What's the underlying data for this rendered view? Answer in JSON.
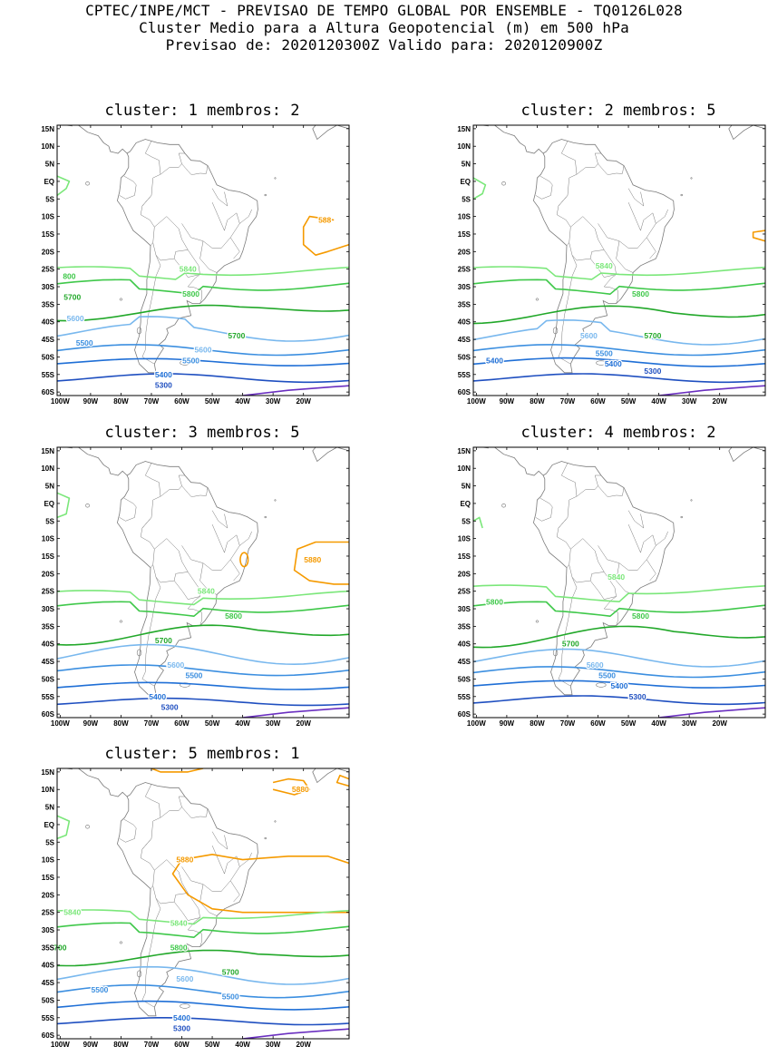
{
  "header": {
    "line1": "CPTEC/INPE/MCT - PREVISAO DE TEMPO GLOBAL POR ENSEMBLE - TQ0126L028",
    "line2": "Cluster Medio para a Altura Geopotencial (m) em 500 hPa",
    "line3": "Previsao de: 2020120300Z   Valido para: 2020120900Z"
  },
  "axes": {
    "lat_labels": [
      "15N",
      "10N",
      "5N",
      "EQ",
      "5S",
      "10S",
      "15S",
      "20S",
      "25S",
      "30S",
      "35S",
      "40S",
      "45S",
      "50S",
      "55S",
      "60S"
    ],
    "lon_labels": [
      "100W",
      "90W",
      "80W",
      "70W",
      "60W",
      "50W",
      "40W",
      "30W",
      "20W"
    ]
  },
  "colors": {
    "5300": "#1f4fc0",
    "5400": "#1f6fd6",
    "5500": "#3c8fe0",
    "5600": "#79b8ee",
    "5700": "#22a82a",
    "5800": "#3fc84a",
    "5840": "#7be77a",
    "5880": "#f59a00",
    "low": "#6a2fc0",
    "coast": "#7a7a7a"
  },
  "panels": [
    {
      "title": "cluster: 1   membros: 2",
      "labels": [
        {
          "text": "588",
          "lon": -13,
          "lat": -11,
          "c": "5880"
        },
        {
          "text": "5840",
          "lon": -58,
          "lat": -25,
          "c": "5840"
        },
        {
          "text": "800",
          "lon": -97,
          "lat": -27,
          "c": "5800"
        },
        {
          "text": "5800",
          "lon": -57,
          "lat": -32,
          "c": "5800"
        },
        {
          "text": "5700",
          "lon": -96,
          "lat": -33,
          "c": "5700"
        },
        {
          "text": "5600",
          "lon": -95,
          "lat": -39,
          "c": "5600"
        },
        {
          "text": "5700",
          "lon": -42,
          "lat": -44,
          "c": "5700"
        },
        {
          "text": "5500",
          "lon": -92,
          "lat": -46,
          "c": "5500"
        },
        {
          "text": "5600",
          "lon": -53,
          "lat": -48,
          "c": "5600"
        },
        {
          "text": "5500",
          "lon": -57,
          "lat": -51,
          "c": "5500"
        },
        {
          "text": "5400",
          "lon": -66,
          "lat": -55,
          "c": "5400"
        },
        {
          "text": "5300",
          "lon": -66,
          "lat": -58,
          "c": "5300"
        }
      ]
    },
    {
      "title": "cluster: 2   membros: 5",
      "labels": [
        {
          "text": "5840",
          "lon": -58,
          "lat": -24,
          "c": "5840"
        },
        {
          "text": "5800",
          "lon": -46,
          "lat": -32,
          "c": "5800"
        },
        {
          "text": "5600",
          "lon": -63,
          "lat": -44,
          "c": "5600"
        },
        {
          "text": "5700",
          "lon": -42,
          "lat": -44,
          "c": "5700"
        },
        {
          "text": "5500",
          "lon": -58,
          "lat": -49,
          "c": "5500"
        },
        {
          "text": "5400",
          "lon": -94,
          "lat": -51,
          "c": "5400"
        },
        {
          "text": "5400",
          "lon": -55,
          "lat": -52,
          "c": "5400"
        },
        {
          "text": "5300",
          "lon": -42,
          "lat": -54,
          "c": "5300"
        }
      ]
    },
    {
      "title": "cluster: 3   membros: 5",
      "labels": [
        {
          "text": "5880",
          "lon": -17,
          "lat": -16,
          "c": "5880"
        },
        {
          "text": "5840",
          "lon": -52,
          "lat": -25,
          "c": "5840"
        },
        {
          "text": "5800",
          "lon": -43,
          "lat": -32,
          "c": "5800"
        },
        {
          "text": "5700",
          "lon": -66,
          "lat": -39,
          "c": "5700"
        },
        {
          "text": "5600",
          "lon": -62,
          "lat": -46,
          "c": "5600"
        },
        {
          "text": "5500",
          "lon": -56,
          "lat": -49,
          "c": "5500"
        },
        {
          "text": "5400",
          "lon": -68,
          "lat": -55,
          "c": "5400"
        },
        {
          "text": "5300",
          "lon": -64,
          "lat": -58,
          "c": "5300"
        }
      ]
    },
    {
      "title": "cluster: 4   membros: 2",
      "labels": [
        {
          "text": "5840",
          "lon": -54,
          "lat": -21,
          "c": "5840"
        },
        {
          "text": "5800",
          "lon": -94,
          "lat": -28,
          "c": "5800"
        },
        {
          "text": "5800",
          "lon": -46,
          "lat": -32,
          "c": "5800"
        },
        {
          "text": "5700",
          "lon": -69,
          "lat": -40,
          "c": "5700"
        },
        {
          "text": "5600",
          "lon": -61,
          "lat": -46,
          "c": "5600"
        },
        {
          "text": "5500",
          "lon": -57,
          "lat": -49,
          "c": "5500"
        },
        {
          "text": "5400",
          "lon": -53,
          "lat": -52,
          "c": "5400"
        },
        {
          "text": "5300",
          "lon": -47,
          "lat": -55,
          "c": "5300"
        }
      ]
    },
    {
      "title": "cluster: 5   membros: 1",
      "labels": [
        {
          "text": "5880",
          "lon": -21,
          "lat": 10,
          "c": "5880"
        },
        {
          "text": "5880",
          "lon": -59,
          "lat": -10,
          "c": "5880"
        },
        {
          "text": "5840",
          "lon": -96,
          "lat": -25,
          "c": "5840"
        },
        {
          "text": "5840",
          "lon": -61,
          "lat": -28,
          "c": "5840"
        },
        {
          "text": "700",
          "lon": -100,
          "lat": -35,
          "c": "5700"
        },
        {
          "text": "5800",
          "lon": -61,
          "lat": -35,
          "c": "5800"
        },
        {
          "text": "5700",
          "lon": -44,
          "lat": -42,
          "c": "5700"
        },
        {
          "text": "5600",
          "lon": -59,
          "lat": -44,
          "c": "5600"
        },
        {
          "text": "5500",
          "lon": -87,
          "lat": -47,
          "c": "5500"
        },
        {
          "text": "5500",
          "lon": -44,
          "lat": -49,
          "c": "5500"
        },
        {
          "text": "5400",
          "lon": -60,
          "lat": -55,
          "c": "5400"
        },
        {
          "text": "5300",
          "lon": -60,
          "lat": -58,
          "c": "5300"
        }
      ]
    }
  ]
}
